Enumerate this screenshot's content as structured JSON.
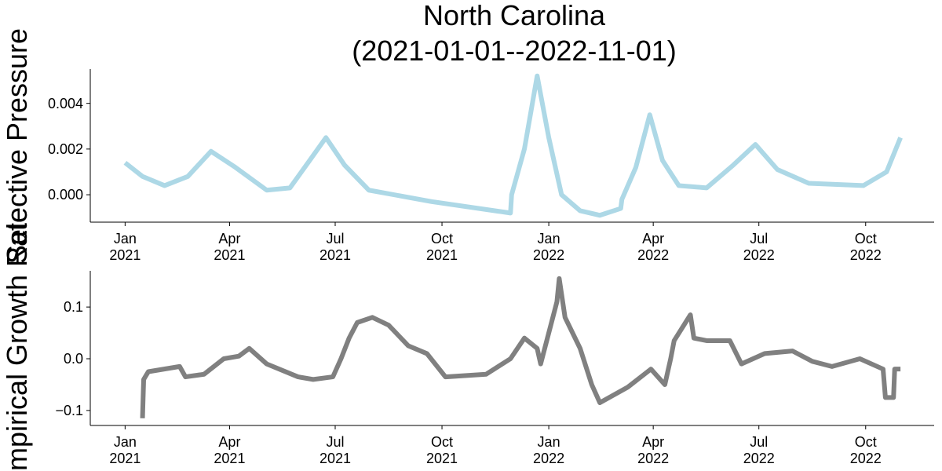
{
  "chart_data": [
    {
      "type": "line",
      "title": "North Carolina\n(2021-01-01--2022-11-01)",
      "y_label": "Selective Pressure",
      "x": [
        "2021-01-01",
        "2021-01-16",
        "2021-02-04",
        "2021-02-24",
        "2021-03-16",
        "2021-04-06",
        "2021-05-03",
        "2021-05-23",
        "2021-06-09",
        "2021-06-23",
        "2021-07-09",
        "2021-07-30",
        "2021-09-22",
        "2021-11-29",
        "2021-11-30",
        "2021-12-11",
        "2021-12-22",
        "2022-01-01",
        "2022-01-12",
        "2022-01-28",
        "2022-02-14",
        "2022-03-04",
        "2022-03-05",
        "2022-03-17",
        "2022-03-29",
        "2022-04-09",
        "2022-04-23",
        "2022-05-17",
        "2022-06-09",
        "2022-06-28",
        "2022-07-17",
        "2022-08-13",
        "2022-09-29",
        "2022-10-19",
        "2022-10-31"
      ],
      "series": [
        {
          "color": "#add8e6",
          "values": [
            0.0014,
            0.0008,
            0.0004,
            0.0008,
            0.0019,
            0.0012,
            0.0002,
            0.0003,
            0.0015,
            0.0025,
            0.0013,
            0.0002,
            -0.0003,
            -0.0008,
            0.0,
            0.002,
            0.0052,
            0.0025,
            0.0,
            -0.0007,
            -0.0009,
            -0.0006,
            -0.0002,
            0.0012,
            0.0035,
            0.0015,
            0.0004,
            0.0003,
            0.0013,
            0.0022,
            0.0011,
            0.0005,
            0.0004,
            0.001,
            0.0025
          ]
        }
      ],
      "xlim": [
        "2020-12-02",
        "2022-11-29"
      ],
      "xticks": [
        {
          "value": "2021-01-01",
          "label": "Jan\n2021"
        },
        {
          "value": "2021-04-01",
          "label": "Apr\n2021"
        },
        {
          "value": "2021-07-01",
          "label": "Jul\n2021"
        },
        {
          "value": "2021-10-01",
          "label": "Oct\n2021"
        },
        {
          "value": "2022-01-01",
          "label": "Jan\n2022"
        },
        {
          "value": "2022-04-01",
          "label": "Apr\n2022"
        },
        {
          "value": "2022-07-01",
          "label": "Jul\n2022"
        },
        {
          "value": "2022-10-01",
          "label": "Oct\n2022"
        }
      ],
      "ylim": [
        -0.0012,
        0.0055
      ],
      "yticks": [
        {
          "value": 0,
          "label": "0.000"
        },
        {
          "value": 0.002,
          "label": "0.002"
        },
        {
          "value": 0.004,
          "label": "0.004"
        }
      ]
    },
    {
      "type": "line",
      "y_label": "Empirical Growth Rate",
      "x": [
        "2021-01-16",
        "2021-01-17",
        "2021-01-21",
        "2021-02-17",
        "2021-02-22",
        "2021-03-10",
        "2021-03-27",
        "2021-04-09",
        "2021-04-18",
        "2021-05-03",
        "2021-05-30",
        "2021-06-12",
        "2021-06-29",
        "2021-07-06",
        "2021-07-13",
        "2021-07-20",
        "2021-08-02",
        "2021-08-16",
        "2021-09-02",
        "2021-09-18",
        "2021-10-04",
        "2021-11-08",
        "2021-11-29",
        "2021-12-11",
        "2021-12-22",
        "2021-12-25",
        "2022-01-01",
        "2022-01-08",
        "2022-01-10",
        "2022-01-15",
        "2022-01-28",
        "2022-02-07",
        "2022-02-14",
        "2022-03-10",
        "2022-03-30",
        "2022-04-11",
        "2022-04-16",
        "2022-04-19",
        "2022-05-03",
        "2022-05-06",
        "2022-05-17",
        "2022-06-06",
        "2022-06-16",
        "2022-07-06",
        "2022-07-30",
        "2022-08-16",
        "2022-09-02",
        "2022-09-26",
        "2022-10-16",
        "2022-10-18",
        "2022-10-25",
        "2022-10-26",
        "2022-10-31"
      ],
      "series": [
        {
          "color": "#808080",
          "values": [
            -0.115,
            -0.04,
            -0.025,
            -0.015,
            -0.035,
            -0.03,
            0.0,
            0.005,
            0.02,
            -0.01,
            -0.035,
            -0.04,
            -0.035,
            0.0,
            0.04,
            0.07,
            0.08,
            0.065,
            0.025,
            0.01,
            -0.035,
            -0.03,
            0.0,
            0.04,
            0.02,
            -0.01,
            0.05,
            0.11,
            0.155,
            0.08,
            0.02,
            -0.05,
            -0.085,
            -0.055,
            -0.02,
            -0.05,
            0.0,
            0.035,
            0.085,
            0.04,
            0.035,
            0.035,
            -0.01,
            0.01,
            0.015,
            -0.005,
            -0.015,
            0.0,
            -0.02,
            -0.075,
            -0.075,
            -0.02,
            -0.02
          ]
        }
      ],
      "xlim": [
        "2020-12-02",
        "2022-11-29"
      ],
      "xticks": [
        {
          "value": "2021-01-01",
          "label": "Jan\n2021"
        },
        {
          "value": "2021-04-01",
          "label": "Apr\n2021"
        },
        {
          "value": "2021-07-01",
          "label": "Jul\n2021"
        },
        {
          "value": "2021-10-01",
          "label": "Oct\n2021"
        },
        {
          "value": "2022-01-01",
          "label": "Jan\n2022"
        },
        {
          "value": "2022-04-01",
          "label": "Apr\n2022"
        },
        {
          "value": "2022-07-01",
          "label": "Jul\n2022"
        },
        {
          "value": "2022-10-01",
          "label": "Oct\n2022"
        }
      ],
      "ylim": [
        -0.129,
        0.17
      ],
      "yticks": [
        {
          "value": -0.1,
          "label": "−0.1"
        },
        {
          "value": 0,
          "label": "0.0"
        },
        {
          "value": 0.1,
          "label": "0.1"
        }
      ]
    }
  ]
}
